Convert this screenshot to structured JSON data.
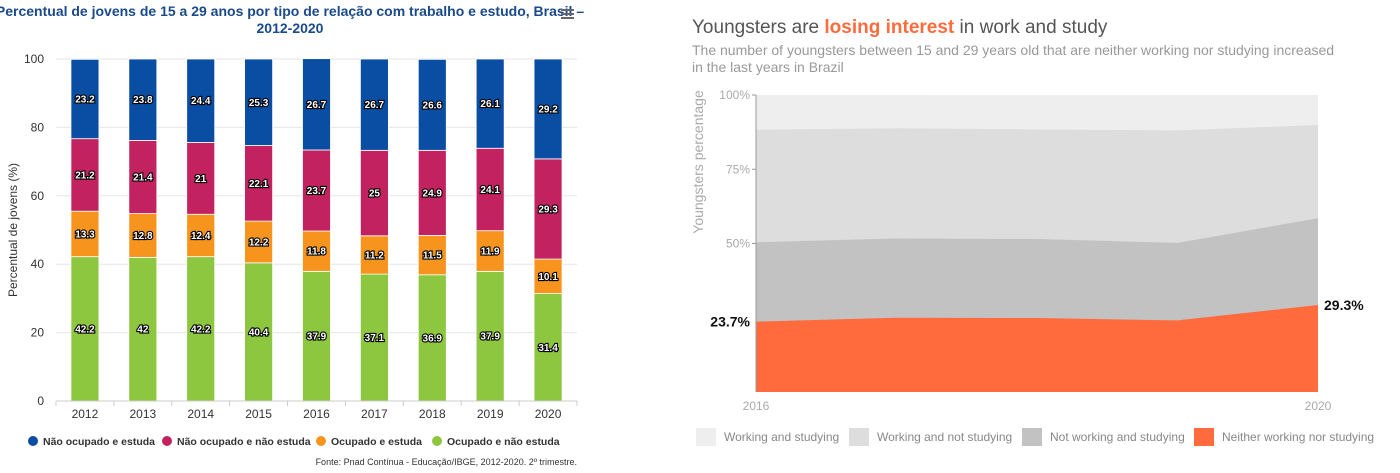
{
  "chart_data": [
    {
      "type": "bar",
      "stacked": true,
      "title": "Percentual de jovens de 15 a 29 anos por tipo de relação com trabalho e estudo, Brasil – 2012-2020",
      "ylabel": "Percentual de jovens (%)",
      "ylim": [
        0,
        100
      ],
      "yticks": [
        "0",
        "20",
        "40",
        "60",
        "80",
        "100"
      ],
      "grid": true,
      "legend_position": "bottom-left",
      "categories": [
        "2012",
        "2013",
        "2014",
        "2015",
        "2016",
        "2017",
        "2018",
        "2019",
        "2020"
      ],
      "series": [
        {
          "name": "Não ocupado e estuda",
          "color": "#0a4ea3",
          "values": [
            23.2,
            23.8,
            24.4,
            25.3,
            26.7,
            26.7,
            26.6,
            26.1,
            29.2
          ],
          "labels": [
            "23.2",
            "23.8",
            "24.4",
            "25.3",
            "26.7",
            "26.7",
            "26.6",
            "26.1",
            "29.2"
          ]
        },
        {
          "name": "Não ocupado e não estuda",
          "color": "#c2225f",
          "values": [
            21.2,
            21.4,
            21,
            22.1,
            23.7,
            25,
            24.9,
            24.1,
            29.3
          ],
          "labels": [
            "21.2",
            "21.4",
            "21",
            "22.1",
            "23.7",
            "25",
            "24.9",
            "24.1",
            "29.3"
          ]
        },
        {
          "name": "Ocupado e estuda",
          "color": "#f7941d",
          "values": [
            13.3,
            12.8,
            12.4,
            12.2,
            11.8,
            11.2,
            11.5,
            11.9,
            10.1
          ],
          "labels": [
            "13.3",
            "12.8",
            "12.4",
            "12.2",
            "11.8",
            "11.2",
            "11.5",
            "11.9",
            "10.1"
          ]
        },
        {
          "name": "Ocupado e não estuda",
          "color": "#8dc63f",
          "values": [
            42.2,
            42,
            42.2,
            40.4,
            37.9,
            37.1,
            36.9,
            37.9,
            31.4
          ],
          "labels": [
            "42.2",
            "42",
            "42.2",
            "40.4",
            "37.9",
            "37.1",
            "36.9",
            "37.9",
            "31.4"
          ]
        }
      ],
      "source": "Fonte: Pnad Contínua - Educação/IBGE, 2012-2020. 2º trimestre.",
      "menu_icon": "hamburger-menu-icon"
    },
    {
      "type": "area",
      "stacked": true,
      "title_parts": [
        "Youngsters are ",
        "losing interest",
        " in work and study"
      ],
      "subtitle": "The number of youngsters between 15 and 29 years old that are neither working nor studying increased in the last years in Brazil",
      "ylabel": "Youngsters percentage",
      "ylim": [
        0,
        100
      ],
      "yticks": [
        "50%",
        "75%",
        "100%"
      ],
      "xlim": [
        2016,
        2020
      ],
      "xticks": [
        "2016",
        "2020"
      ],
      "x": [
        2016,
        2017,
        2018,
        2019,
        2020
      ],
      "legend_position": "bottom",
      "accent_color": "#ff6b3d",
      "series": [
        {
          "name": "Working and studying",
          "color": "#eeeeee",
          "values": [
            11.8,
            11.2,
            11.5,
            11.9,
            10.1
          ]
        },
        {
          "name": "Working and not studying",
          "color": "#dddddd",
          "values": [
            37.9,
            37.1,
            36.9,
            37.9,
            31.4
          ]
        },
        {
          "name": "Not working and studying",
          "color": "#c2c2c2",
          "values": [
            26.7,
            26.7,
            26.6,
            26.1,
            29.2
          ]
        },
        {
          "name": "Neither working nor studying",
          "color": "#ff6b3d",
          "values": [
            23.7,
            25,
            24.9,
            24.1,
            29.3
          ]
        }
      ],
      "annotations": [
        "23.7%",
        "29.3%"
      ]
    }
  ]
}
